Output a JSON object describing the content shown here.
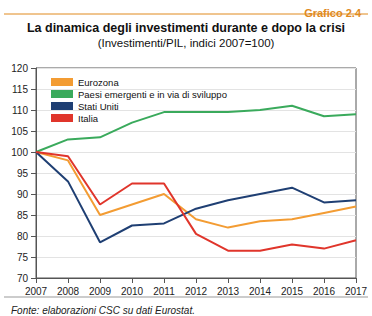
{
  "chart_data": {
    "type": "line",
    "title": "La dinamica degli investimenti durante e dopo la crisi",
    "subtitle": "(Investimenti/PIL, indici 2007=100)",
    "annotations": [
      "Grafico 2.4",
      "Fonte: elaborazioni CSC su dati Eurostat."
    ],
    "categories": [
      "2007",
      "2008",
      "2009",
      "2010",
      "2011",
      "2012",
      "2013",
      "2014",
      "2015",
      "2016",
      "2017"
    ],
    "series": [
      {
        "name": "Eurozona",
        "color": "#f39c33",
        "values": [
          100,
          98,
          85,
          87.5,
          90,
          84,
          82,
          83.5,
          84,
          85.5,
          87
        ]
      },
      {
        "name": "Paesi emergenti e in via di sviluppo",
        "color": "#3aaa5c",
        "values": [
          100,
          103,
          103.5,
          107,
          109.5,
          109.5,
          109.5,
          110,
          111,
          108.5,
          109
        ]
      },
      {
        "name": "Stati Uniti",
        "color": "#1f3f73",
        "values": [
          100,
          93,
          78.5,
          82.5,
          83,
          86.5,
          88.5,
          90,
          91.5,
          88,
          88.5
        ]
      },
      {
        "name": "Italia",
        "color": "#e0352b",
        "values": [
          100,
          99,
          87.5,
          92.5,
          92.5,
          80.5,
          76.5,
          76.5,
          78,
          77,
          79
        ]
      }
    ],
    "ylim": [
      70,
      120
    ],
    "yticks": [
      70,
      75,
      80,
      85,
      90,
      95,
      100,
      105,
      110,
      115,
      120
    ],
    "grid": true,
    "legend": "upper left"
  }
}
